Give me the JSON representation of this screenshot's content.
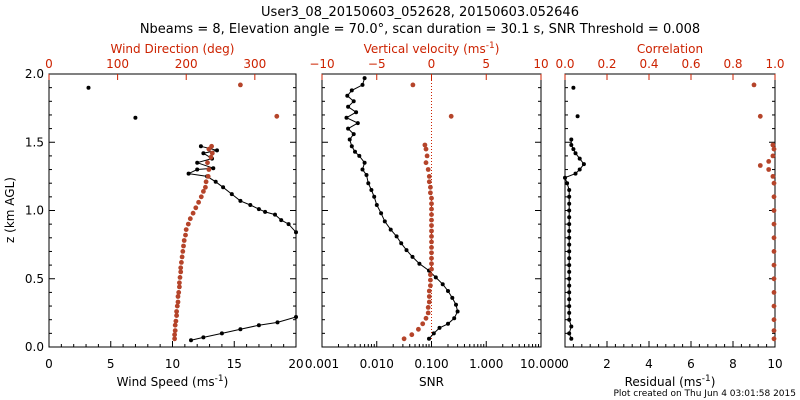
{
  "header": {
    "title_line1": "User3_08_20150603_052628, 20150603.052646",
    "title_line2": "Nbeams = 8, Elevation angle = 70.0°, scan duration = 30.1 s, SNR Threshold = 0.008"
  },
  "footer": {
    "plot_created": "Plot created on Thu Jun  4 03:01:58 2015"
  },
  "colors": {
    "black_series": "#000000",
    "red_series": "#b5442a",
    "red_axis": "#cc2200",
    "zero_line": "#cc2200"
  },
  "chart_data": [
    {
      "type": "scatter",
      "ylabel": "z (km AGL)",
      "ylim": [
        0,
        2
      ],
      "yticks": [
        "0.0",
        "0.5",
        "1.0",
        "1.5",
        "2.0"
      ],
      "bottom_axis": {
        "label": "Wind Speed (ms",
        "unit_exp": "-1",
        "label_end": ")",
        "range": [
          0,
          20
        ],
        "ticks": [
          "0",
          "5",
          "10",
          "15",
          "20"
        ]
      },
      "top_axis": {
        "label": "Wind Direction (deg)",
        "range": [
          0,
          360
        ],
        "ticks": [
          "0",
          "100",
          "200",
          "300"
        ]
      },
      "series": [
        {
          "axis": "bottom",
          "color": "black",
          "lines": true,
          "points": [
            [
              11.5,
              0.05
            ],
            [
              12.5,
              0.07
            ],
            [
              14,
              0.1
            ],
            [
              15.5,
              0.13
            ],
            [
              17,
              0.16
            ],
            [
              18.5,
              0.18
            ],
            [
              20,
              0.22
            ],
            [
              20,
              0.84
            ],
            [
              19.4,
              0.9
            ],
            [
              18.8,
              0.93
            ],
            [
              18.3,
              0.97
            ],
            [
              17.5,
              0.99
            ],
            [
              17,
              1.01
            ],
            [
              16.3,
              1.04
            ],
            [
              15.5,
              1.07
            ],
            [
              14.8,
              1.12
            ],
            [
              14.1,
              1.17
            ],
            [
              13.5,
              1.21
            ],
            [
              12.8,
              1.25
            ],
            [
              11.3,
              1.27
            ],
            [
              12,
              1.3
            ],
            [
              13.3,
              1.31
            ],
            [
              12,
              1.35
            ],
            [
              13.2,
              1.38
            ],
            [
              12.5,
              1.42
            ],
            [
              13.6,
              1.44
            ],
            [
              12.3,
              1.47
            ]
          ]
        },
        {
          "axis": "bottom",
          "color": "black",
          "lines": false,
          "points": [
            [
              3.2,
              1.9
            ],
            [
              7.0,
              1.68
            ]
          ]
        },
        {
          "axis": "top",
          "color": "red",
          "lines": false,
          "points": [
            [
              237,
              1.47
            ],
            [
              233,
              1.45
            ],
            [
              238,
              1.42
            ],
            [
              236,
              1.39
            ],
            [
              231,
              1.35
            ],
            [
              233,
              1.3
            ],
            [
              232,
              1.25
            ],
            [
              229,
              1.21
            ],
            [
              228,
              1.17
            ],
            [
              225,
              1.14
            ],
            [
              222,
              1.1
            ],
            [
              218,
              1.06
            ],
            [
              214,
              1.02
            ],
            [
              210,
              0.98
            ],
            [
              206,
              0.94
            ],
            [
              203,
              0.9
            ],
            [
              200,
              0.86
            ],
            [
              199,
              0.82
            ],
            [
              197,
              0.78
            ],
            [
              196,
              0.74
            ],
            [
              195,
              0.7
            ],
            [
              194,
              0.66
            ],
            [
              193,
              0.62
            ],
            [
              192,
              0.58
            ],
            [
              192,
              0.55
            ],
            [
              191,
              0.51
            ],
            [
              190,
              0.47
            ],
            [
              190,
              0.44
            ],
            [
              189,
              0.4
            ],
            [
              188,
              0.37
            ],
            [
              188,
              0.33
            ],
            [
              187,
              0.3
            ],
            [
              186,
              0.26
            ],
            [
              186,
              0.23
            ],
            [
              185,
              0.19
            ],
            [
              184,
              0.16
            ],
            [
              184,
              0.12
            ],
            [
              183,
              0.09
            ],
            [
              183,
              0.06
            ],
            [
              279,
              1.92
            ],
            [
              332,
              1.69
            ]
          ]
        }
      ]
    },
    {
      "type": "scatter",
      "ylim": [
        0,
        2
      ],
      "bottom_axis": {
        "label": "SNR",
        "scale": "log",
        "range": [
          0.001,
          10
        ],
        "ticks": [
          "0.001",
          "0.010",
          "0.100",
          "1.000",
          "10.000"
        ]
      },
      "top_axis": {
        "label": "Vertical velocity (ms",
        "unit_exp": "-1",
        "label_end": ")",
        "range": [
          -10,
          10
        ],
        "ticks": [
          "−10",
          "−5",
          "0",
          "5",
          "10"
        ]
      },
      "series": [
        {
          "axis": "bottom",
          "color": "black",
          "lines": true,
          "points": [
            [
              0.09,
              0.06
            ],
            [
              0.11,
              0.1
            ],
            [
              0.14,
              0.14
            ],
            [
              0.2,
              0.17
            ],
            [
              0.26,
              0.21
            ],
            [
              0.3,
              0.26
            ],
            [
              0.28,
              0.31
            ],
            [
              0.24,
              0.36
            ],
            [
              0.2,
              0.41
            ],
            [
              0.16,
              0.46
            ],
            [
              0.12,
              0.51
            ],
            [
              0.09,
              0.56
            ],
            [
              0.06,
              0.61
            ],
            [
              0.045,
              0.66
            ],
            [
              0.035,
              0.71
            ],
            [
              0.028,
              0.76
            ],
            [
              0.023,
              0.81
            ],
            [
              0.018,
              0.86
            ],
            [
              0.014,
              0.92
            ],
            [
              0.012,
              0.98
            ],
            [
              0.01,
              1.04
            ],
            [
              0.009,
              1.1
            ],
            [
              0.008,
              1.15
            ],
            [
              0.007,
              1.2
            ],
            [
              0.0065,
              1.26
            ],
            [
              0.0055,
              1.3
            ],
            [
              0.006,
              1.35
            ],
            [
              0.0048,
              1.4
            ],
            [
              0.004,
              1.43
            ],
            [
              0.0035,
              1.47
            ],
            [
              0.0032,
              1.52
            ],
            [
              0.0038,
              1.56
            ],
            [
              0.003,
              1.6
            ],
            [
              0.0045,
              1.64
            ],
            [
              0.0028,
              1.68
            ],
            [
              0.0042,
              1.72
            ],
            [
              0.003,
              1.76
            ],
            [
              0.0038,
              1.8
            ],
            [
              0.0029,
              1.84
            ],
            [
              0.0035,
              1.88
            ],
            [
              0.0055,
              1.92
            ],
            [
              0.006,
              1.97
            ]
          ]
        },
        {
          "axis": "top",
          "color": "red",
          "lines": false,
          "points": [
            [
              -2.5,
              0.06
            ],
            [
              -1.8,
              0.09
            ],
            [
              -1.2,
              0.13
            ],
            [
              -0.8,
              0.17
            ],
            [
              -0.5,
              0.21
            ],
            [
              -0.3,
              0.25
            ],
            [
              -0.3,
              0.29
            ],
            [
              -0.2,
              0.33
            ],
            [
              -0.2,
              0.37
            ],
            [
              -0.2,
              0.41
            ],
            [
              -0.1,
              0.45
            ],
            [
              -0.1,
              0.49
            ],
            [
              -0.1,
              0.53
            ],
            [
              0,
              0.57
            ],
            [
              0,
              0.61
            ],
            [
              0,
              0.65
            ],
            [
              0,
              0.69
            ],
            [
              0,
              0.73
            ],
            [
              0,
              0.77
            ],
            [
              0,
              0.81
            ],
            [
              0,
              0.85
            ],
            [
              0,
              0.89
            ],
            [
              0,
              0.93
            ],
            [
              0,
              0.97
            ],
            [
              0,
              1.01
            ],
            [
              0,
              1.05
            ],
            [
              0,
              1.09
            ],
            [
              -0.1,
              1.13
            ],
            [
              -0.1,
              1.17
            ],
            [
              -0.2,
              1.21
            ],
            [
              -0.2,
              1.25
            ],
            [
              -0.3,
              1.3
            ],
            [
              -0.5,
              1.35
            ],
            [
              -0.4,
              1.4
            ],
            [
              -0.5,
              1.45
            ],
            [
              -0.6,
              1.48
            ],
            [
              -1.7,
              1.92
            ],
            [
              1.8,
              1.69
            ]
          ]
        }
      ]
    },
    {
      "type": "scatter",
      "ylim": [
        0,
        2
      ],
      "bottom_axis": {
        "label": "Residual  (ms",
        "unit_exp": "-1",
        "label_end": ")",
        "range": [
          0,
          10
        ],
        "ticks": [
          "0",
          "2",
          "4",
          "6",
          "8",
          "10"
        ]
      },
      "top_axis": {
        "label": "Correlation",
        "range": [
          0,
          1
        ],
        "ticks": [
          "0.0",
          "0.2",
          "0.4",
          "0.6",
          "0.8",
          "1.0"
        ]
      },
      "series": [
        {
          "axis": "bottom",
          "color": "black",
          "lines": true,
          "points": [
            [
              0.3,
              0.06
            ],
            [
              0.2,
              0.1
            ],
            [
              0.3,
              0.15
            ],
            [
              0.2,
              0.2
            ],
            [
              0.2,
              0.25
            ],
            [
              0.2,
              0.3
            ],
            [
              0.2,
              0.35
            ],
            [
              0.2,
              0.4
            ],
            [
              0.2,
              0.45
            ],
            [
              0.2,
              0.5
            ],
            [
              0.2,
              0.55
            ],
            [
              0.2,
              0.6
            ],
            [
              0.2,
              0.65
            ],
            [
              0.2,
              0.7
            ],
            [
              0.2,
              0.75
            ],
            [
              0.2,
              0.8
            ],
            [
              0.2,
              0.85
            ],
            [
              0.2,
              0.9
            ],
            [
              0.2,
              0.95
            ],
            [
              0.2,
              1.0
            ],
            [
              0.2,
              1.05
            ],
            [
              0.2,
              1.1
            ],
            [
              0.2,
              1.15
            ],
            [
              0.1,
              1.2
            ],
            [
              0.0,
              1.24
            ],
            [
              0.5,
              1.27
            ],
            [
              0.7,
              1.3
            ],
            [
              0.9,
              1.34
            ],
            [
              0.7,
              1.38
            ],
            [
              0.5,
              1.42
            ],
            [
              0.4,
              1.45
            ],
            [
              0.3,
              1.48
            ],
            [
              0.3,
              1.52
            ]
          ]
        },
        {
          "axis": "bottom",
          "color": "black",
          "lines": false,
          "points": [
            [
              0.4,
              1.9
            ],
            [
              0.6,
              1.69
            ]
          ]
        },
        {
          "axis": "top",
          "color": "red",
          "lines": false,
          "points": [
            [
              0.995,
              0.06
            ],
            [
              0.995,
              0.12
            ],
            [
              0.995,
              0.2
            ],
            [
              0.995,
              0.3
            ],
            [
              0.995,
              0.4
            ],
            [
              0.995,
              0.5
            ],
            [
              0.995,
              0.6
            ],
            [
              0.995,
              0.7
            ],
            [
              0.995,
              0.8
            ],
            [
              0.995,
              0.9
            ],
            [
              0.995,
              1.0
            ],
            [
              0.995,
              1.1
            ],
            [
              0.995,
              1.2
            ],
            [
              0.99,
              1.25
            ],
            [
              0.97,
              1.3
            ],
            [
              0.93,
              1.33
            ],
            [
              0.97,
              1.36
            ],
            [
              0.99,
              1.4
            ],
            [
              0.995,
              1.45
            ],
            [
              0.99,
              1.48
            ],
            [
              0.9,
              1.92
            ],
            [
              0.93,
              1.69
            ]
          ]
        }
      ]
    }
  ]
}
